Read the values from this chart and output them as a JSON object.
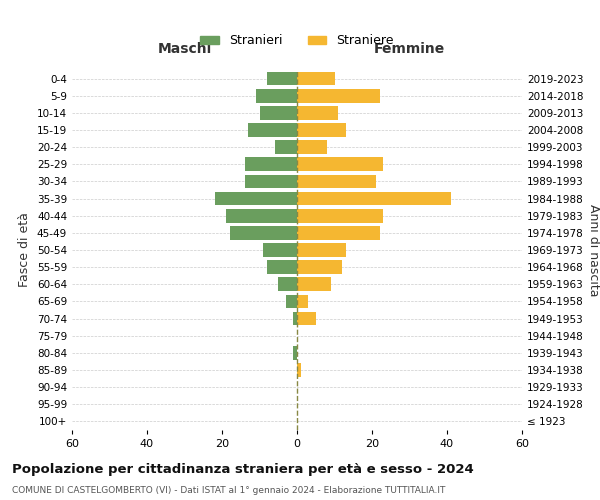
{
  "age_groups": [
    "100+",
    "95-99",
    "90-94",
    "85-89",
    "80-84",
    "75-79",
    "70-74",
    "65-69",
    "60-64",
    "55-59",
    "50-54",
    "45-49",
    "40-44",
    "35-39",
    "30-34",
    "25-29",
    "20-24",
    "15-19",
    "10-14",
    "5-9",
    "0-4"
  ],
  "birth_years": [
    "≤ 1923",
    "1924-1928",
    "1929-1933",
    "1934-1938",
    "1939-1943",
    "1944-1948",
    "1949-1953",
    "1954-1958",
    "1959-1963",
    "1964-1968",
    "1969-1973",
    "1974-1978",
    "1979-1983",
    "1984-1988",
    "1989-1993",
    "1994-1998",
    "1999-2003",
    "2004-2008",
    "2009-2013",
    "2014-2018",
    "2019-2023"
  ],
  "males": [
    0,
    0,
    0,
    0,
    1,
    0,
    1,
    3,
    5,
    8,
    9,
    18,
    19,
    22,
    14,
    14,
    6,
    13,
    10,
    11,
    8
  ],
  "females": [
    0,
    0,
    0,
    1,
    0,
    0,
    5,
    3,
    9,
    12,
    13,
    22,
    23,
    41,
    21,
    23,
    8,
    13,
    11,
    22,
    10
  ],
  "male_color": "#6a9e5e",
  "female_color": "#f5b731",
  "center_line_color": "#888844",
  "background_color": "#ffffff",
  "grid_color": "#cccccc",
  "title": "Popolazione per cittadinanza straniera per età e sesso - 2024",
  "subtitle": "COMUNE DI CASTELGOMBERTO (VI) - Dati ISTAT al 1° gennaio 2024 - Elaborazione TUTTITALIA.IT",
  "xlabel_left": "Maschi",
  "xlabel_right": "Femmine",
  "ylabel_left": "Fasce di età",
  "ylabel_right": "Anni di nascita",
  "legend_male": "Stranieri",
  "legend_female": "Straniere",
  "xlim": 60,
  "bar_height": 0.8
}
